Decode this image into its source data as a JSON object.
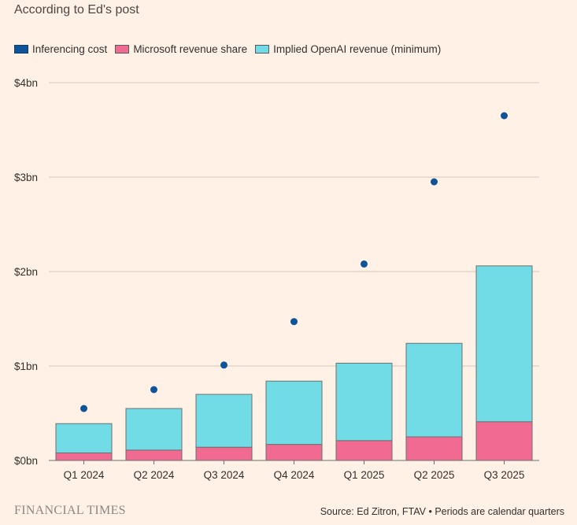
{
  "chart_data": {
    "type": "bar",
    "subtitle": "According to Ed's post",
    "categories": [
      "Q1 2024",
      "Q2 2024",
      "Q3 2024",
      "Q4 2024",
      "Q1 2025",
      "Q2 2025",
      "Q3 2025"
    ],
    "series": [
      {
        "name": "Inferencing cost",
        "kind": "scatter",
        "color": "#0f5499",
        "values": [
          0.55,
          0.75,
          1.01,
          1.47,
          2.08,
          2.95,
          3.65
        ]
      },
      {
        "name": "Microsoft revenue share",
        "kind": "stacked-bar",
        "color": "#f06a92",
        "values": [
          0.08,
          0.11,
          0.14,
          0.17,
          0.21,
          0.25,
          0.41
        ]
      },
      {
        "name": "Implied OpenAI revenue (minimum)",
        "kind": "stacked-bar",
        "color": "#72dce6",
        "values": [
          0.31,
          0.44,
          0.56,
          0.67,
          0.82,
          0.99,
          1.65
        ]
      }
    ],
    "yticks": [
      0,
      1,
      2,
      3,
      4
    ],
    "ytick_labels": [
      "$0bn",
      "$1bn",
      "$2bn",
      "$3bn",
      "$4bn"
    ],
    "ylim": [
      0,
      4
    ],
    "grid": true,
    "legend_position": "top-left"
  },
  "footer": {
    "brand": "FINANCIAL TIMES",
    "source": "Source: Ed Zitron, FTAV • Periods are calendar quarters"
  }
}
